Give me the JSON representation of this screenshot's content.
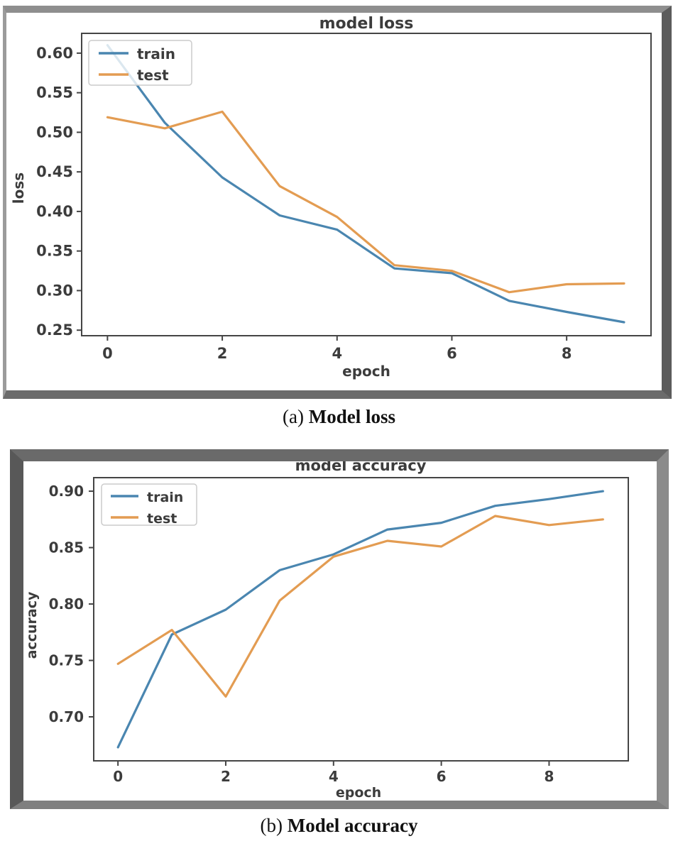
{
  "figures": [
    {
      "panel_label": "(a)",
      "caption": "Model loss"
    },
    {
      "panel_label": "(b)",
      "caption": "Model accuracy"
    }
  ],
  "colors": {
    "train_line": "#4a86b0",
    "test_line": "#e39c52",
    "axis": "#454545",
    "text": "#3c3c3c",
    "legend_border": "#cccccc"
  },
  "chart_data": [
    {
      "type": "line",
      "title": "model loss",
      "xlabel": "epoch",
      "ylabel": "loss",
      "x": [
        0,
        1,
        2,
        3,
        4,
        5,
        6,
        7,
        8,
        9
      ],
      "series": [
        {
          "name": "train",
          "color": "#4a86b0",
          "values": [
            0.61,
            0.512,
            0.443,
            0.395,
            0.377,
            0.328,
            0.322,
            0.287,
            0.273,
            0.26
          ]
        },
        {
          "name": "test",
          "color": "#e39c52",
          "values": [
            0.519,
            0.505,
            0.526,
            0.432,
            0.393,
            0.332,
            0.325,
            0.298,
            0.308,
            0.309
          ]
        }
      ],
      "xlim": [
        -0.45,
        9.47
      ],
      "ylim": [
        0.243,
        0.625
      ],
      "xtick_values": [
        0,
        2,
        4,
        6,
        8
      ],
      "xtick_labels": [
        "0",
        "2",
        "4",
        "6",
        "8"
      ],
      "ytick_values": [
        0.6,
        0.55,
        0.5,
        0.45,
        0.4,
        0.35,
        0.3,
        0.25
      ],
      "ytick_labels": [
        "0.60",
        "0.55",
        "0.50",
        "0.45",
        "0.40",
        "0.35",
        "0.30",
        "0.25"
      ],
      "legend": [
        "train",
        "test"
      ],
      "legend_position": "upper left",
      "grid": false
    },
    {
      "type": "line",
      "title": "model accuracy",
      "xlabel": "epoch",
      "ylabel": "accuracy",
      "x": [
        0,
        1,
        2,
        3,
        4,
        5,
        6,
        7,
        8,
        9
      ],
      "series": [
        {
          "name": "train",
          "color": "#4a86b0",
          "values": [
            0.673,
            0.773,
            0.795,
            0.83,
            0.844,
            0.866,
            0.872,
            0.887,
            0.893,
            0.9
          ]
        },
        {
          "name": "test",
          "color": "#e39c52",
          "values": [
            0.747,
            0.777,
            0.718,
            0.803,
            0.842,
            0.856,
            0.851,
            0.878,
            0.87,
            0.875
          ]
        }
      ],
      "xlim": [
        -0.45,
        9.47
      ],
      "ylim": [
        0.661,
        0.912
      ],
      "xtick_values": [
        0,
        2,
        4,
        6,
        8
      ],
      "xtick_labels": [
        "0",
        "2",
        "4",
        "6",
        "8"
      ],
      "ytick_values": [
        0.9,
        0.85,
        0.8,
        0.75,
        0.7
      ],
      "ytick_labels": [
        "0.90",
        "0.85",
        "0.80",
        "0.75",
        "0.70"
      ],
      "legend": [
        "train",
        "test"
      ],
      "legend_position": "upper left",
      "grid": false
    }
  ]
}
